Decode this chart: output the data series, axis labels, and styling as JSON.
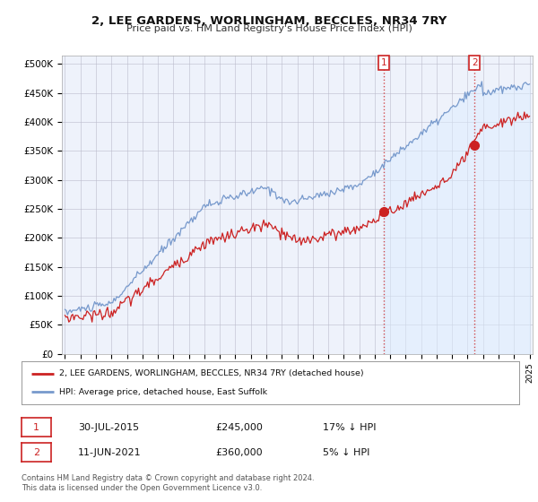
{
  "title": "2, LEE GARDENS, WORLINGHAM, BECCLES, NR34 7RY",
  "subtitle": "Price paid vs. HM Land Registry's House Price Index (HPI)",
  "ylabel_ticks": [
    "£0",
    "£50K",
    "£100K",
    "£150K",
    "£200K",
    "£250K",
    "£300K",
    "£350K",
    "£400K",
    "£450K",
    "£500K"
  ],
  "ytick_values": [
    0,
    50000,
    100000,
    150000,
    200000,
    250000,
    300000,
    350000,
    400000,
    450000,
    500000
  ],
  "ylim": [
    0,
    515000
  ],
  "xlim_start": 1995.0,
  "xlim_end": 2025.0,
  "hpi_color": "#7799cc",
  "hpi_fill_color": "#ddeeff",
  "price_color": "#cc2222",
  "transaction1_date": 2015.57,
  "transaction1_price": 245000,
  "transaction2_date": 2021.44,
  "transaction2_price": 360000,
  "legend_line1": "2, LEE GARDENS, WORLINGHAM, BECCLES, NR34 7RY (detached house)",
  "legend_line2": "HPI: Average price, detached house, East Suffolk",
  "table_row1": [
    "1",
    "30-JUL-2015",
    "£245,000",
    "17% ↓ HPI"
  ],
  "table_row2": [
    "2",
    "11-JUN-2021",
    "£360,000",
    "5% ↓ HPI"
  ],
  "footer": "Contains HM Land Registry data © Crown copyright and database right 2024.\nThis data is licensed under the Open Government Licence v3.0.",
  "background_color": "#ffffff",
  "plot_bg_color": "#eef2fb",
  "grid_color": "#bbbbcc"
}
